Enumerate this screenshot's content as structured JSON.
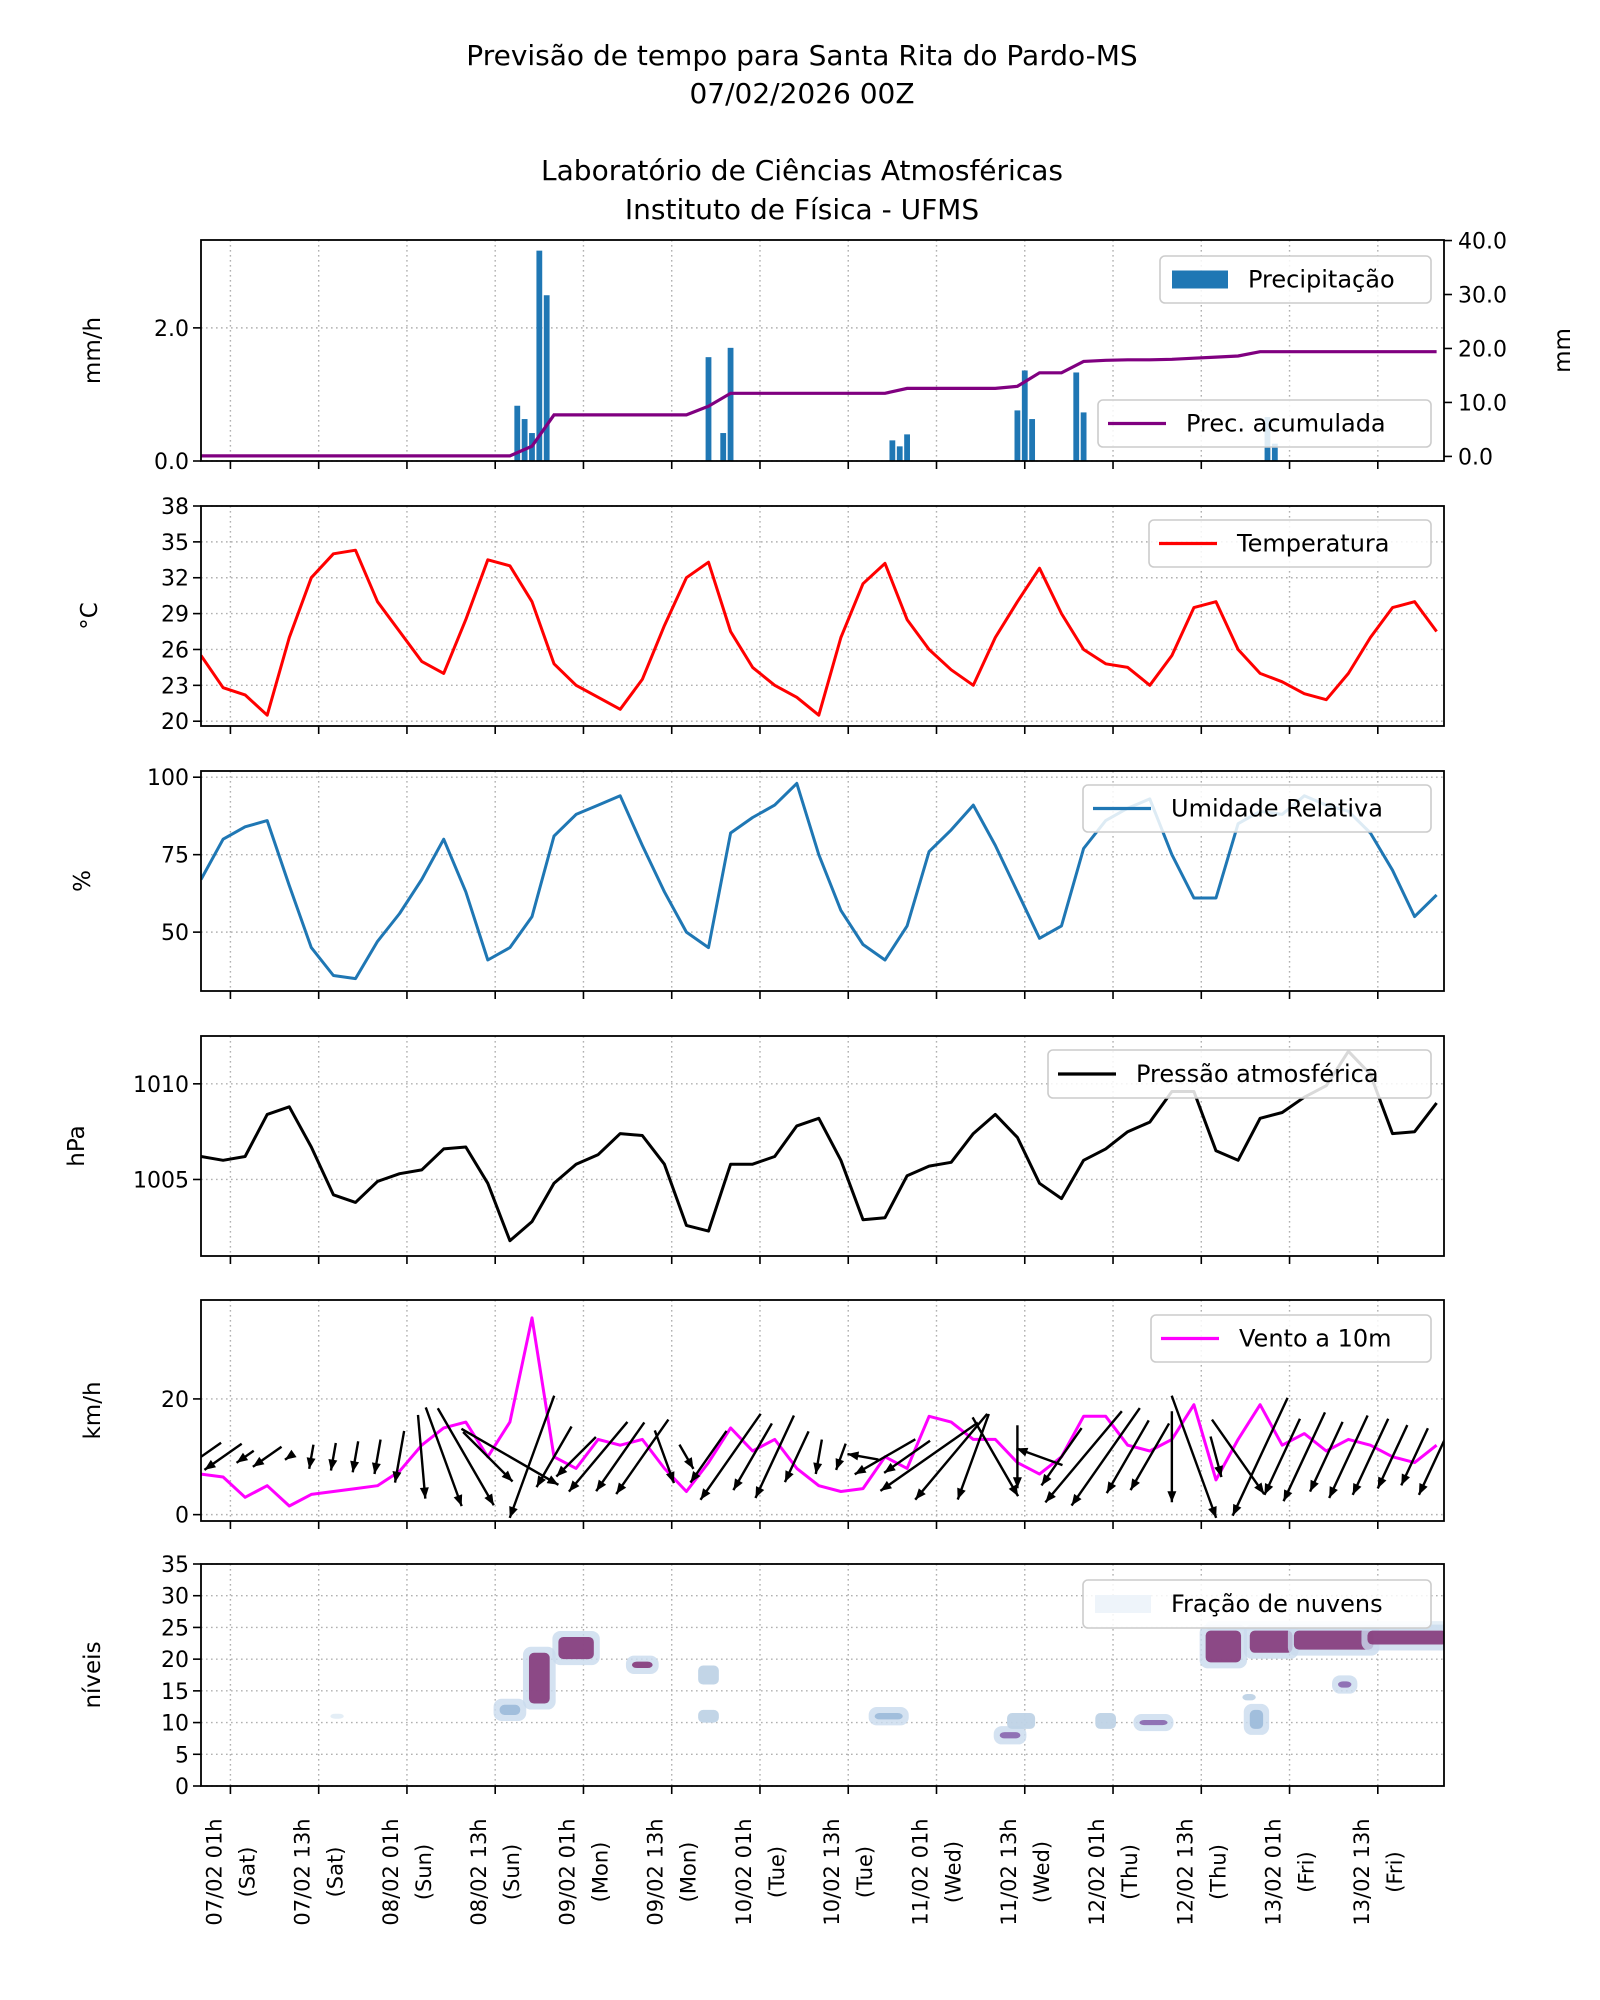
{
  "title": {
    "line1": "Previsão de tempo para Santa Rita do Pardo-MS",
    "line2": "07/02/2026 00Z",
    "line3": "Laboratório de Ciências Atmosféricas",
    "line4": "Instituto de Física - UFMS"
  },
  "colors": {
    "precipitation": "#1f77b4",
    "accumulated": "#800080",
    "temperature": "#ff0000",
    "humidity": "#1f77b4",
    "pressure": "#000000",
    "wind": "#ff00ff",
    "wind_arrows": "#000000",
    "cloud_low": "#e3edf6",
    "cloud_high": "#88407f"
  },
  "chart_data": {
    "type": "multi-panel time series",
    "grid": true,
    "legend_placement": "top-right",
    "time": [
      "06/02 21h",
      "07/02 00h",
      "07/02 03h",
      "07/02 06h",
      "07/02 09h",
      "07/02 12h",
      "07/02 15h",
      "07/02 18h",
      "07/02 21h",
      "08/02 00h",
      "08/02 03h",
      "08/02 06h",
      "08/02 09h",
      "08/02 12h",
      "08/02 15h",
      "08/02 18h",
      "08/02 21h",
      "09/02 00h",
      "09/02 03h",
      "09/02 06h",
      "09/02 09h",
      "09/02 12h",
      "09/02 15h",
      "09/02 18h",
      "09/02 21h",
      "10/02 00h",
      "10/02 03h",
      "10/02 06h",
      "10/02 09h",
      "10/02 12h",
      "10/02 15h",
      "10/02 18h",
      "10/02 21h",
      "11/02 00h",
      "11/02 03h",
      "11/02 06h",
      "11/02 09h",
      "11/02 12h",
      "11/02 15h",
      "11/02 18h",
      "11/02 21h",
      "12/02 00h",
      "12/02 03h",
      "12/02 06h",
      "12/02 09h",
      "12/02 12h",
      "12/02 15h",
      "12/02 18h",
      "12/02 21h",
      "13/02 00h",
      "13/02 03h",
      "13/02 06h",
      "13/02 09h",
      "13/02 12h",
      "13/02 15h",
      "13/02 18h",
      "13/02 21h"
    ],
    "xlim": [
      "06/02 21h",
      "13/02 22h"
    ],
    "x_ticks": [
      {
        "date": "07/02 01h",
        "day": "(Sat)"
      },
      {
        "date": "07/02 13h",
        "day": "(Sat)"
      },
      {
        "date": "08/02 01h",
        "day": "(Sun)"
      },
      {
        "date": "08/02 13h",
        "day": "(Sun)"
      },
      {
        "date": "09/02 01h",
        "day": "(Mon)"
      },
      {
        "date": "09/02 13h",
        "day": "(Mon)"
      },
      {
        "date": "10/02 01h",
        "day": "(Tue)"
      },
      {
        "date": "10/02 13h",
        "day": "(Tue)"
      },
      {
        "date": "11/02 01h",
        "day": "(Wed)"
      },
      {
        "date": "11/02 13h",
        "day": "(Wed)"
      },
      {
        "date": "12/02 01h",
        "day": "(Thu)"
      },
      {
        "date": "12/02 13h",
        "day": "(Thu)"
      },
      {
        "date": "13/02 01h",
        "day": "(Fri)"
      },
      {
        "date": "13/02 13h",
        "day": "(Fri)"
      }
    ],
    "panels": [
      {
        "type": "bar+line",
        "ylabel": "mm/h",
        "ylim": [
          0,
          3.32
        ],
        "yticks": [
          0,
          2
        ],
        "ytick_labels": [
          "0.0",
          "2.0"
        ],
        "ylabel_right": "mm",
        "ylim_right": [
          -0.85,
          40.1
        ],
        "yticks_right": [
          0,
          10,
          20,
          30,
          40
        ],
        "ytick_labels_right": [
          "0.0",
          "10.0",
          "20.0",
          "30.0",
          "40.0"
        ],
        "bars": {
          "name": "Precipitação",
          "times": [
            "08/02 16h",
            "08/02 17h",
            "08/02 18h",
            "08/02 19h",
            "08/02 20h",
            "09/02 18h",
            "09/02 20h",
            "09/02 21h",
            "10/02 19h",
            "10/02 20h",
            "10/02 21h",
            "11/02 12h",
            "11/02 13h",
            "11/02 14h",
            "11/02 20h",
            "11/02 21h",
            "12/02 22h",
            "12/02 23h"
          ],
          "values": [
            0.83,
            0.63,
            0.42,
            3.16,
            2.49,
            1.56,
            0.42,
            1.7,
            0.31,
            0.22,
            0.4,
            0.76,
            1.36,
            0.63,
            1.33,
            0.73,
            0.66,
            0.26
          ]
        },
        "line": {
          "name": "Prec. acumulada",
          "values": [
            0.1,
            0.1,
            0.1,
            0.1,
            0.1,
            0.1,
            0.1,
            0.1,
            0.1,
            0.1,
            0.1,
            0.1,
            0.1,
            0.1,
            0.1,
            1.9,
            7.7,
            7.7,
            7.7,
            7.7,
            7.7,
            7.7,
            7.7,
            9.3,
            11.7,
            11.7,
            11.7,
            11.7,
            11.7,
            11.7,
            11.7,
            11.7,
            12.6,
            12.6,
            12.6,
            12.6,
            12.6,
            13.0,
            15.5,
            15.5,
            17.6,
            17.8,
            17.9,
            17.9,
            18.0,
            18.2,
            18.4,
            18.6,
            19.4,
            19.4,
            19.4,
            19.4,
            19.4,
            19.4,
            19.4,
            19.4,
            19.4
          ]
        }
      },
      {
        "type": "line",
        "ylabel": "°C",
        "ylim": [
          19.6,
          38
        ],
        "yticks": [
          20,
          23,
          26,
          29,
          32,
          35,
          38
        ],
        "ytick_labels": [
          "20",
          "23",
          "26",
          "29",
          "32",
          "35",
          "38"
        ],
        "series": {
          "name": "Temperatura",
          "values": [
            25.5,
            22.8,
            22.2,
            20.5,
            27,
            32,
            34,
            34.3,
            30,
            27.5,
            25,
            24,
            28.5,
            33.5,
            33,
            30,
            24.8,
            23,
            22,
            21.0,
            23.5,
            28,
            32,
            33.3,
            27.5,
            24.5,
            23,
            22,
            20.5,
            27,
            31.5,
            33.2,
            28.5,
            26,
            24.3,
            23,
            27,
            30,
            32.8,
            29,
            26,
            24.8,
            24.5,
            23,
            25.5,
            29.5,
            30,
            26,
            24,
            23.3,
            22.3,
            21.8,
            24,
            27,
            29.5,
            30,
            27.5
          ]
        }
      },
      {
        "type": "line",
        "ylabel": "%",
        "ylim": [
          31,
          102
        ],
        "yticks": [
          50,
          75,
          100
        ],
        "ytick_labels": [
          "50",
          "75",
          "100"
        ],
        "series": {
          "name": "Umidade Relativa",
          "values": [
            67,
            80,
            84,
            86,
            65,
            45,
            36,
            35,
            47,
            56,
            67,
            80,
            63,
            41,
            45,
            55,
            81,
            88,
            91,
            94,
            78,
            63,
            50,
            45,
            82,
            87,
            91,
            98,
            75,
            57,
            46,
            41,
            52,
            76,
            83,
            91,
            78,
            63,
            48,
            52,
            77,
            86,
            90,
            93,
            75,
            61,
            61,
            85,
            89,
            88,
            94,
            91,
            89,
            82,
            70,
            55,
            62
          ]
        }
      },
      {
        "type": "line",
        "ylabel": "hPa",
        "ylim": [
          1001.0,
          1012.5
        ],
        "yticks": [
          1005,
          1010
        ],
        "ytick_labels": [
          "1005",
          "1010"
        ],
        "series": {
          "name": "Pressão atmosférica",
          "values": [
            1006.2,
            1006.0,
            1006.2,
            1008.4,
            1008.8,
            1006.7,
            1004.2,
            1003.8,
            1004.9,
            1005.3,
            1005.5,
            1006.6,
            1006.7,
            1004.8,
            1001.8,
            1002.8,
            1004.8,
            1005.8,
            1006.3,
            1007.4,
            1007.3,
            1005.8,
            1002.6,
            1002.3,
            1005.8,
            1005.8,
            1006.2,
            1007.8,
            1008.2,
            1006.0,
            1002.9,
            1003.0,
            1005.2,
            1005.7,
            1005.9,
            1007.4,
            1008.4,
            1007.2,
            1004.8,
            1004.0,
            1006.0,
            1006.6,
            1007.5,
            1008.0,
            1009.6,
            1009.6,
            1006.5,
            1006.0,
            1008.2,
            1008.5,
            1009.3,
            1009.9,
            1011.7,
            1010.5,
            1007.4,
            1007.5,
            1009.0
          ]
        }
      },
      {
        "type": "line+quiver",
        "ylabel": "km/h",
        "ylim": [
          -1.1,
          37.1
        ],
        "yticks": [
          0,
          20
        ],
        "ytick_labels": [
          "0",
          "20"
        ],
        "series": {
          "name": "Vento a 10m",
          "values": [
            7,
            6.5,
            3,
            5,
            1.5,
            3.5,
            4,
            4.5,
            5,
            7.5,
            12,
            15,
            16,
            10,
            16,
            34,
            10,
            8,
            13,
            12,
            13,
            8,
            4,
            9,
            15,
            11,
            13,
            8,
            5,
            4,
            4.5,
            10,
            8,
            17,
            16,
            13,
            13,
            9,
            7,
            10,
            17,
            17,
            12,
            11,
            13,
            19,
            6,
            13,
            19,
            12,
            14,
            11,
            13,
            12,
            10,
            9,
            12
          ]
        },
        "arrow_direction_deg": [
          235,
          235,
          235,
          235,
          235,
          190,
          190,
          190,
          190,
          190,
          175,
          160,
          150,
          135,
          120,
          200,
          210,
          225,
          220,
          215,
          215,
          160,
          150,
          215,
          215,
          210,
          205,
          205,
          190,
          200,
          280,
          240,
          235,
          235,
          220,
          200,
          150,
          180,
          290,
          215,
          220,
          215,
          210,
          210,
          180,
          160,
          165,
          145,
          205,
          205,
          205,
          205,
          205,
          205,
          205,
          205,
          205
        ]
      },
      {
        "type": "contour",
        "ylabel": "níveis",
        "ylim": [
          0,
          35
        ],
        "yticks": [
          0,
          5,
          10,
          15,
          20,
          25,
          30,
          35
        ],
        "ytick_labels": [
          "0",
          "5",
          "10",
          "15",
          "20",
          "25",
          "30",
          "35"
        ],
        "legend": "Fração de nuvens",
        "cloud_cells": [
          {
            "t0": "07/02 15h",
            "t1": "07/02 16h",
            "lev0": 10.6,
            "lev1": 11.4,
            "fraction": 0.1
          },
          {
            "t0": "08/02 14h",
            "t1": "08/02 16h",
            "lev0": 11.2,
            "lev1": 12.8,
            "fraction": 0.5
          },
          {
            "t0": "08/02 18h",
            "t1": "08/02 20h",
            "lev0": 13.0,
            "lev1": 21.0,
            "fraction": 1.0
          },
          {
            "t0": "08/02 22h",
            "t1": "09/02 02h",
            "lev0": 20.0,
            "lev1": 23.5,
            "fraction": 1.0
          },
          {
            "t0": "09/02 08h",
            "t1": "09/02 10h",
            "lev0": 18.6,
            "lev1": 19.6,
            "fraction": 0.9
          },
          {
            "t0": "09/02 17h",
            "t1": "09/02 19h",
            "lev0": 16.0,
            "lev1": 19.0,
            "fraction": 0.2
          },
          {
            "t0": "09/02 17h",
            "t1": "09/02 19h",
            "lev0": 10.0,
            "lev1": 12.0,
            "fraction": 0.25
          },
          {
            "t0": "10/02 17h",
            "t1": "10/02 20h",
            "lev0": 10.5,
            "lev1": 11.5,
            "fraction": 0.5
          },
          {
            "t0": "11/02 10h",
            "t1": "11/02 12h",
            "lev0": 7.5,
            "lev1": 8.5,
            "fraction": 0.8
          },
          {
            "t0": "11/02 11h",
            "t1": "11/02 14h",
            "lev0": 9.0,
            "lev1": 11.5,
            "fraction": 0.3
          },
          {
            "t0": "11/02 23h",
            "t1": "12/02 01h",
            "lev0": 9.0,
            "lev1": 11.5,
            "fraction": 0.4
          },
          {
            "t0": "12/02 05h",
            "t1": "12/02 08h",
            "lev0": 9.6,
            "lev1": 10.4,
            "fraction": 0.7
          },
          {
            "t0": "12/02 14h",
            "t1": "13/02 22h",
            "lev0": 24.5,
            "lev1": 26.0,
            "fraction": 0.15
          },
          {
            "t0": "12/02 14h",
            "t1": "12/02 18h",
            "lev0": 19.5,
            "lev1": 24.5,
            "fraction": 1.0
          },
          {
            "t0": "12/02 20h",
            "t1": "13/02 01h",
            "lev0": 21.0,
            "lev1": 24.5,
            "fraction": 1.0
          },
          {
            "t0": "13/02 02h",
            "t1": "13/02 12h",
            "lev0": 21.5,
            "lev1": 24.5,
            "fraction": 1.0
          },
          {
            "t0": "13/02 12h",
            "t1": "13/02 22h",
            "lev0": 22.3,
            "lev1": 24.5,
            "fraction": 1.0
          },
          {
            "t0": "12/02 19h",
            "t1": "12/02 20h",
            "lev0": 13.5,
            "lev1": 14.5,
            "fraction": 0.3
          },
          {
            "t0": "12/02 20h",
            "t1": "12/02 21h",
            "lev0": 9.0,
            "lev1": 12.0,
            "fraction": 0.5
          },
          {
            "t0": "13/02 08h",
            "t1": "13/02 09h",
            "lev0": 15.5,
            "lev1": 16.5,
            "fraction": 0.8
          }
        ]
      }
    ]
  }
}
